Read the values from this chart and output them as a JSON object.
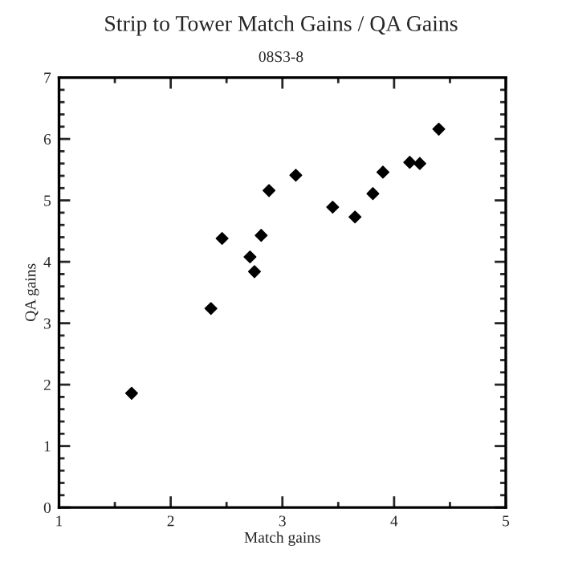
{
  "chart_data": {
    "type": "scatter",
    "title": "Strip to Tower Match Gains / QA Gains",
    "subtitle": "08S3-8",
    "xlabel": "Match gains",
    "ylabel": "QA gains",
    "xlim": [
      1,
      5
    ],
    "xticks": [
      1,
      2,
      3,
      4,
      5
    ],
    "ylim": [
      0,
      7
    ],
    "yticks": [
      0,
      1,
      2,
      3,
      4,
      5,
      6,
      7
    ],
    "grid": false,
    "marker": "diamond",
    "series": [
      {
        "color": "#000000",
        "x": [
          1.65,
          2.36,
          2.46,
          2.71,
          2.75,
          2.81,
          2.88,
          3.12,
          3.45,
          3.65,
          3.81,
          3.9,
          4.14,
          4.23,
          4.4
        ],
        "values": [
          1.86,
          3.24,
          4.38,
          4.08,
          3.84,
          4.43,
          5.16,
          5.41,
          4.89,
          4.73,
          5.11,
          5.46,
          5.62,
          5.6,
          6.16
        ]
      }
    ]
  }
}
